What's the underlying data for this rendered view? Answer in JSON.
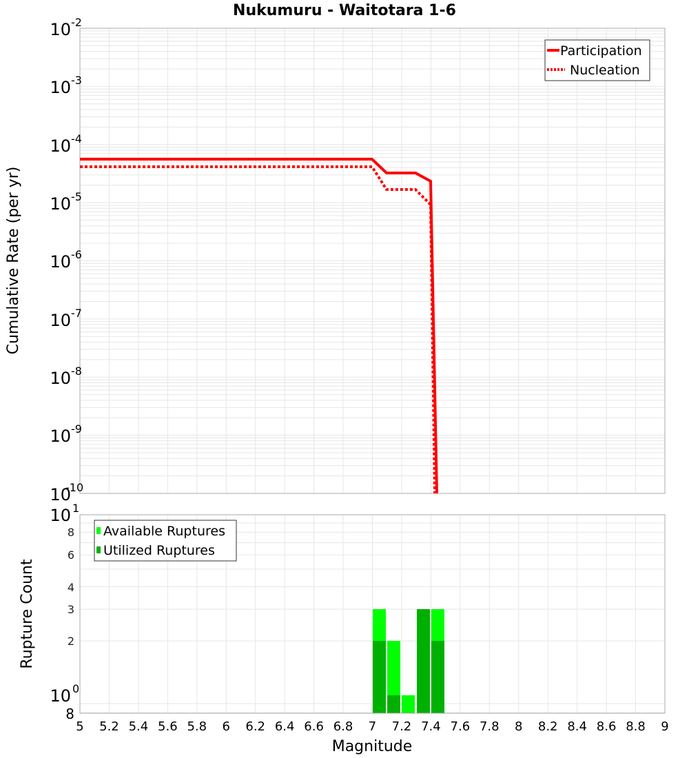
{
  "chart_data": [
    {
      "type": "line",
      "title": "Nukumuru - Waitotara 1-6",
      "xlabel": "Magnitude",
      "ylabel": "Cumulative Rate (per yr)",
      "yscale": "log",
      "xlim": [
        5,
        9
      ],
      "ylim": [
        1e-10,
        0.01
      ],
      "grid": true,
      "legend_position": "upper right",
      "y_ticks": [
        "10^-2",
        "10^-3",
        "10^-4",
        "10^-5",
        "10^-6",
        "10^-7",
        "10^-8",
        "10^-9",
        "10^-10"
      ],
      "series": [
        {
          "name": "Participation",
          "style": "solid",
          "color": "#ff0000",
          "x": [
            5.0,
            7.0,
            7.1,
            7.2,
            7.3,
            7.4,
            7.45
          ],
          "values": [
            5.3e-05,
            5.3e-05,
            3.1e-05,
            3.05e-05,
            3.05e-05,
            2.2e-05,
            1e-10
          ]
        },
        {
          "name": "Nucleation",
          "style": "dotted",
          "color": "#ff0000",
          "x": [
            5.0,
            7.0,
            7.1,
            7.2,
            7.3,
            7.4,
            7.45
          ],
          "values": [
            3.9e-05,
            3.9e-05,
            1.6e-05,
            1.6e-05,
            1.6e-05,
            9e-06,
            1e-10
          ]
        }
      ]
    },
    {
      "type": "bar",
      "xlabel": "Magnitude",
      "ylabel": "Rupture Count",
      "yscale": "log",
      "xlim": [
        5,
        9
      ],
      "ylim": [
        0.8,
        10
      ],
      "grid": true,
      "legend_position": "upper left",
      "x_ticks": [
        "5",
        "5.2",
        "5.4",
        "5.6",
        "5.8",
        "6",
        "6.2",
        "6.4",
        "6.6",
        "6.8",
        "7",
        "7.2",
        "7.4",
        "7.6",
        "7.8",
        "8",
        "8.2",
        "8.4",
        "8.6",
        "8.8",
        "9"
      ],
      "y_ticks": [
        "10^1",
        "8",
        "6",
        "4",
        "3",
        "2",
        "10^0",
        "8"
      ],
      "bin_width": 0.1,
      "categories": [
        7.0,
        7.1,
        7.2,
        7.3,
        7.4
      ],
      "series": [
        {
          "name": "Available Ruptures",
          "color": "#00ff00",
          "values": [
            3,
            2,
            1,
            3,
            3
          ]
        },
        {
          "name": "Utilized Ruptures",
          "color": "#00b000",
          "values": [
            2,
            1,
            0,
            3,
            2
          ]
        }
      ]
    }
  ],
  "top": {
    "title": "Nukumuru - Waitotara 1-6",
    "ylabel": "Cumulative Rate (per yr)",
    "yticks": [
      {
        "base": "10",
        "exp": "-2"
      },
      {
        "base": "10",
        "exp": "-3"
      },
      {
        "base": "10",
        "exp": "-4"
      },
      {
        "base": "10",
        "exp": "-5"
      },
      {
        "base": "10",
        "exp": "-6"
      },
      {
        "base": "10",
        "exp": "-7"
      },
      {
        "base": "10",
        "exp": "-8"
      },
      {
        "base": "10",
        "exp": "-9"
      },
      {
        "base": "10",
        "exp": "-10"
      }
    ],
    "legend": {
      "participation": "Participation",
      "nucleation": "Nucleation"
    },
    "line_color": "#ff0000"
  },
  "bottom": {
    "ylabel": "Rupture Count",
    "xlabel": "Magnitude",
    "yticks": {
      "top_base": "10",
      "top_exp": "1",
      "t8": "8",
      "t6": "6",
      "t4": "4",
      "t3": "3",
      "t2": "2",
      "one_base": "10",
      "one_exp": "0",
      "bottom": "8"
    },
    "xticks": [
      "5",
      "5.2",
      "5.4",
      "5.6",
      "5.8",
      "6",
      "6.2",
      "6.4",
      "6.6",
      "6.8",
      "7",
      "7.2",
      "7.4",
      "7.6",
      "7.8",
      "8",
      "8.2",
      "8.4",
      "8.6",
      "8.8",
      "9"
    ],
    "legend": {
      "available": "Available Ruptures",
      "utilized": "Utilized Ruptures"
    },
    "colors": {
      "available": "#00ff00",
      "utilized": "#00b000"
    }
  }
}
